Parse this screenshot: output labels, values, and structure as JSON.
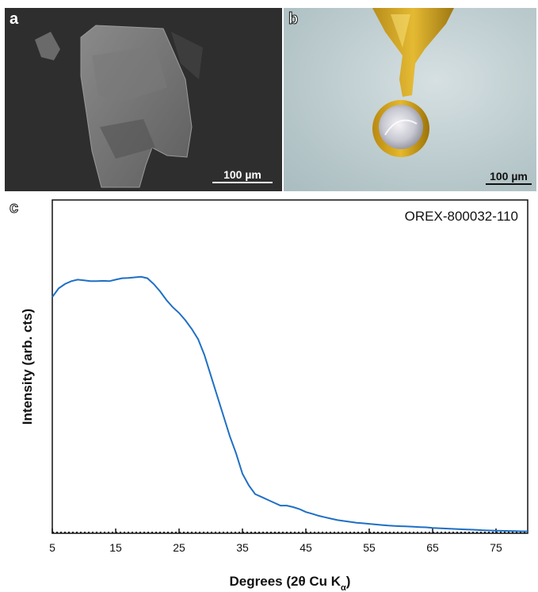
{
  "panel_a": {
    "letter": "a",
    "scale_label": "100 µm"
  },
  "panel_b": {
    "letter": "b",
    "scale_label": "100 µm"
  },
  "panel_c": {
    "letter": "c"
  },
  "chart_data": {
    "type": "line",
    "annotation": "OREX-800032-110",
    "xlabel": "Degrees (2θ Cu K",
    "xlabel_sub": "α",
    "xlabel_close": ")",
    "ylabel": "Intensity (arb. cts)",
    "xlim": [
      5,
      80
    ],
    "ylim": [
      0,
      1
    ],
    "x_ticks": [
      5,
      15,
      25,
      35,
      45,
      55,
      65,
      75
    ],
    "colors": {
      "line": "#1f6fc5"
    },
    "grid": false,
    "series": [
      {
        "x": [
          5,
          6,
          7,
          8,
          9,
          10,
          11,
          12,
          13,
          14,
          15,
          16,
          17,
          18,
          19,
          20,
          21,
          22,
          23,
          24,
          25,
          26,
          27,
          28,
          29,
          30,
          31,
          32,
          33,
          34,
          35,
          36,
          37,
          38,
          39,
          40,
          41,
          42,
          43,
          44,
          45,
          46,
          47,
          48,
          49,
          50,
          51,
          52,
          53,
          54,
          55,
          56,
          57,
          58,
          59,
          60,
          61,
          62,
          63,
          64,
          65,
          66,
          67,
          68,
          69,
          70,
          71,
          72,
          73,
          74,
          75,
          76,
          77,
          78,
          79,
          80
        ],
        "y": [
          0.81,
          0.84,
          0.855,
          0.865,
          0.87,
          0.868,
          0.865,
          0.865,
          0.866,
          0.865,
          0.87,
          0.875,
          0.876,
          0.878,
          0.88,
          0.875,
          0.855,
          0.83,
          0.8,
          0.775,
          0.755,
          0.73,
          0.7,
          0.665,
          0.61,
          0.54,
          0.47,
          0.4,
          0.33,
          0.27,
          0.2,
          0.16,
          0.13,
          0.12,
          0.11,
          0.1,
          0.09,
          0.09,
          0.085,
          0.078,
          0.068,
          0.062,
          0.055,
          0.05,
          0.045,
          0.04,
          0.037,
          0.034,
          0.031,
          0.029,
          0.027,
          0.025,
          0.023,
          0.021,
          0.02,
          0.019,
          0.018,
          0.017,
          0.016,
          0.015,
          0.013,
          0.012,
          0.011,
          0.01,
          0.009,
          0.008,
          0.007,
          0.006,
          0.005,
          0.004,
          0.0035,
          0.003,
          0.0025,
          0.002,
          0.0015,
          0.001
        ]
      }
    ]
  }
}
